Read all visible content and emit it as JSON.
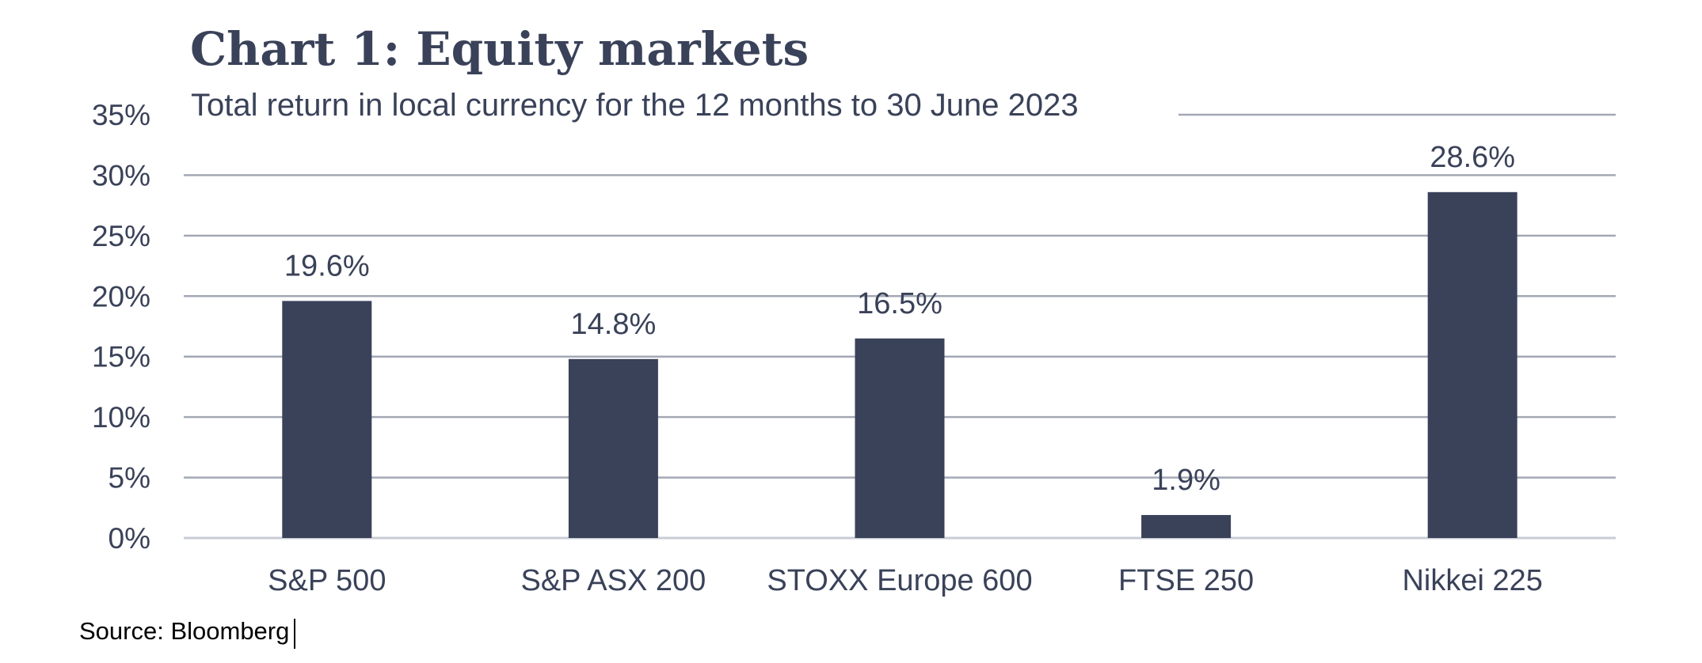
{
  "chart_data": {
    "type": "bar",
    "title": "Chart 1: Equity markets",
    "subtitle": "Total return in local currency for the 12 months to 30 June 2023",
    "categories": [
      "S&P 500",
      "S&P ASX 200",
      "STOXX Europe 600",
      "FTSE 250",
      "Nikkei 225"
    ],
    "values": [
      19.6,
      14.8,
      16.5,
      1.9,
      28.6
    ],
    "data_labels": [
      "19.6%",
      "14.8%",
      "16.5%",
      "1.9%",
      "28.6%"
    ],
    "ylim": [
      0,
      35
    ],
    "yticks": [
      0,
      5,
      10,
      15,
      20,
      25,
      30,
      35
    ],
    "ytick_labels": [
      "0%",
      "5%",
      "10%",
      "15%",
      "20%",
      "25%",
      "30%",
      "35%"
    ],
    "xlabel": "",
    "ylabel": "",
    "grid": true,
    "legend": "none",
    "bar_color": "#3a4259",
    "source": "Source: Bloomberg"
  }
}
